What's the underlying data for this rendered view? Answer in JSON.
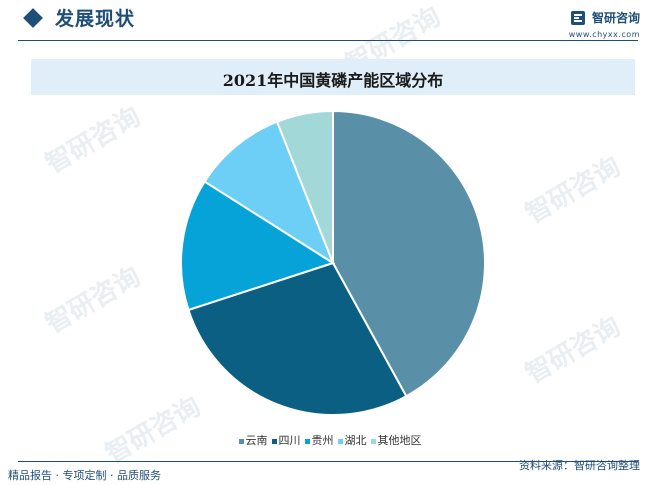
{
  "header": {
    "section_title": "发展现状",
    "brand_name": "智研咨询",
    "brand_url": "www.chyxx.com"
  },
  "chart_title": "2021年中国黄磷产能区域分布",
  "watermark_text": "智研咨询",
  "colors": {
    "brand": "#1f4e79",
    "title_band": "#dfeef8"
  },
  "chart_data": {
    "type": "pie",
    "title": "2021年中国黄磷产能区域分布",
    "categories": [
      "云南",
      "四川",
      "贵州",
      "湖北",
      "其他地区"
    ],
    "values": [
      42,
      28,
      14,
      10,
      6
    ],
    "unit": "%",
    "colors": [
      "#5a8fa8",
      "#0b5f82",
      "#06a3d9",
      "#6dcff6",
      "#a3d8d8"
    ],
    "legend_position": "bottom"
  },
  "footer": {
    "left": "精品报告 · 专项定制 · 品质服务",
    "right": "资料来源：智研咨询整理"
  }
}
